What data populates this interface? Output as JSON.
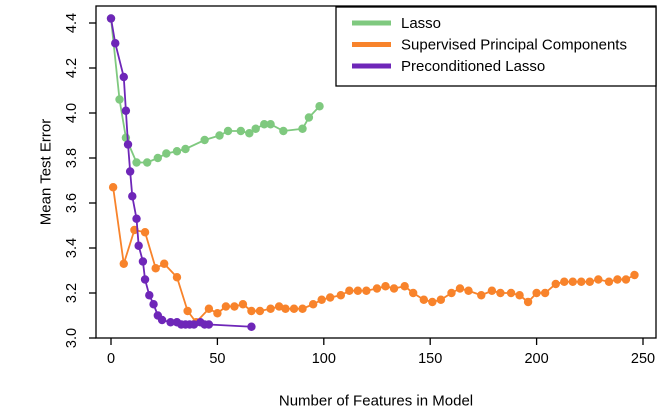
{
  "figure": {
    "background": "#ffffff",
    "text_color": "#000000"
  },
  "chart_data": {
    "type": "line",
    "title": "",
    "xlabel": "Number of Features in Model",
    "ylabel": "Mean Test Error",
    "xlim": [
      -4,
      254
    ],
    "ylim": [
      2.98,
      4.47
    ],
    "xticks": [
      0,
      50,
      100,
      150,
      200,
      250
    ],
    "yticks": [
      3.0,
      3.2,
      3.4,
      3.6,
      3.8,
      4.0,
      4.2,
      4.4
    ],
    "grid": false,
    "legend": {
      "position": "top-right",
      "border": true
    },
    "series": [
      {
        "id": "lasso",
        "name": "Lasso",
        "color": "#7FC97F",
        "marker": "circle",
        "points": [
          [
            0,
            4.42
          ],
          [
            4,
            4.06
          ],
          [
            7,
            3.89
          ],
          [
            12,
            3.78
          ],
          [
            17,
            3.78
          ],
          [
            22,
            3.8
          ],
          [
            26,
            3.82
          ],
          [
            31,
            3.83
          ],
          [
            35,
            3.84
          ],
          [
            44,
            3.88
          ],
          [
            51,
            3.9
          ],
          [
            55,
            3.92
          ],
          [
            61,
            3.92
          ],
          [
            65,
            3.91
          ],
          [
            68,
            3.93
          ],
          [
            72,
            3.95
          ],
          [
            75,
            3.95
          ],
          [
            81,
            3.92
          ],
          [
            90,
            3.93
          ],
          [
            93,
            3.98
          ],
          [
            98,
            4.03
          ]
        ]
      },
      {
        "id": "supervised-principal-components",
        "name": "Supervised Principal Components",
        "color": "#F8832B",
        "marker": "circle",
        "points": [
          [
            1,
            3.67
          ],
          [
            6,
            3.33
          ],
          [
            11,
            3.48
          ],
          [
            16,
            3.47
          ],
          [
            21,
            3.31
          ],
          [
            25,
            3.33
          ],
          [
            31,
            3.27
          ],
          [
            36,
            3.12
          ],
          [
            40,
            3.07
          ],
          [
            46,
            3.13
          ],
          [
            50,
            3.11
          ],
          [
            54,
            3.14
          ],
          [
            58,
            3.14
          ],
          [
            62,
            3.15
          ],
          [
            66,
            3.12
          ],
          [
            70,
            3.12
          ],
          [
            75,
            3.13
          ],
          [
            79,
            3.14
          ],
          [
            82,
            3.13
          ],
          [
            86,
            3.13
          ],
          [
            90,
            3.13
          ],
          [
            95,
            3.15
          ],
          [
            99,
            3.17
          ],
          [
            103,
            3.18
          ],
          [
            108,
            3.19
          ],
          [
            112,
            3.21
          ],
          [
            116,
            3.21
          ],
          [
            120,
            3.21
          ],
          [
            125,
            3.22
          ],
          [
            129,
            3.23
          ],
          [
            133,
            3.22
          ],
          [
            138,
            3.23
          ],
          [
            142,
            3.2
          ],
          [
            147,
            3.17
          ],
          [
            151,
            3.16
          ],
          [
            155,
            3.17
          ],
          [
            160,
            3.2
          ],
          [
            164,
            3.22
          ],
          [
            168,
            3.21
          ],
          [
            174,
            3.19
          ],
          [
            179,
            3.21
          ],
          [
            183,
            3.2
          ],
          [
            188,
            3.2
          ],
          [
            192,
            3.19
          ],
          [
            196,
            3.16
          ],
          [
            200,
            3.2
          ],
          [
            204,
            3.2
          ],
          [
            209,
            3.24
          ],
          [
            213,
            3.25
          ],
          [
            217,
            3.25
          ],
          [
            221,
            3.25
          ],
          [
            225,
            3.25
          ],
          [
            229,
            3.26
          ],
          [
            234,
            3.25
          ],
          [
            238,
            3.26
          ],
          [
            242,
            3.26
          ],
          [
            246,
            3.28
          ]
        ]
      },
      {
        "id": "preconditioned-lasso",
        "name": "Preconditioned Lasso",
        "color": "#6E26B8",
        "marker": "circle",
        "points": [
          [
            0,
            4.42
          ],
          [
            2,
            4.31
          ],
          [
            6,
            4.16
          ],
          [
            7,
            4.01
          ],
          [
            8,
            3.86
          ],
          [
            9,
            3.74
          ],
          [
            10,
            3.63
          ],
          [
            12,
            3.53
          ],
          [
            13,
            3.41
          ],
          [
            15,
            3.34
          ],
          [
            16,
            3.26
          ],
          [
            18,
            3.19
          ],
          [
            20,
            3.15
          ],
          [
            22,
            3.1
          ],
          [
            24,
            3.08
          ],
          [
            28,
            3.07
          ],
          [
            31,
            3.07
          ],
          [
            33,
            3.06
          ],
          [
            35,
            3.06
          ],
          [
            37,
            3.06
          ],
          [
            39,
            3.06
          ],
          [
            42,
            3.07
          ],
          [
            44,
            3.06
          ],
          [
            46,
            3.06
          ],
          [
            66,
            3.05
          ]
        ]
      }
    ]
  }
}
